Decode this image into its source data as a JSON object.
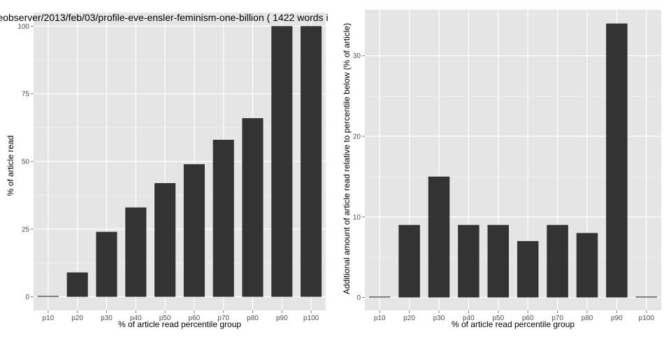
{
  "colors": {
    "panel_background": "#e5e5e5",
    "grid_major": "#ffffff",
    "grid_minor": "#f2f2f2",
    "bar_fill": "#333333",
    "tick_text": "#4d4d4d"
  },
  "chart_data": [
    {
      "type": "bar",
      "title": "eobserver/2013/feb/03/profile-eve-ensler-feminism-one-billion ( 1422 words i",
      "xlabel": "% of article read percentile group",
      "ylabel": "% of article read",
      "categories": [
        "p10",
        "p20",
        "p30",
        "p40",
        "p50",
        "p60",
        "p70",
        "p80",
        "p90",
        "p100"
      ],
      "values": [
        0,
        9,
        24,
        33,
        42,
        49,
        58,
        66,
        100,
        100
      ],
      "ylim": [
        -5,
        105
      ],
      "yticks": [
        0,
        25,
        50,
        75,
        100
      ],
      "ytick_labels": [
        "0",
        "25",
        "50",
        "75",
        "100"
      ],
      "grid": true,
      "legend": "none"
    },
    {
      "type": "bar",
      "title": "",
      "xlabel": "% of article read percentile group",
      "ylabel": "Additional amount of article read relative to percentile below (% of article)",
      "categories": [
        "p10",
        "p20",
        "p30",
        "p40",
        "p50",
        "p60",
        "p70",
        "p80",
        "p90",
        "p100"
      ],
      "values": [
        0,
        9,
        15,
        9,
        9,
        7,
        9,
        8,
        34,
        0
      ],
      "ylim": [
        -1.6,
        35.7
      ],
      "yticks": [
        0,
        10,
        20,
        30
      ],
      "ytick_labels": [
        "0",
        "10",
        "20",
        "30"
      ],
      "grid": true,
      "legend": "none"
    }
  ]
}
